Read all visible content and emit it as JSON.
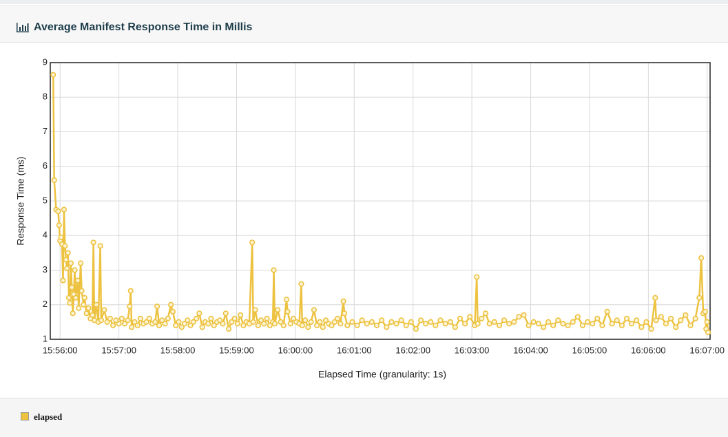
{
  "chart_data": {
    "type": "line",
    "title": "Average Manifest Response Time in Millis",
    "x_label": "Elapsed Time (granularity: 1s)",
    "y_label": "Response Time (ms)",
    "grid": true,
    "legend": "bottom-left",
    "xlim": [
      "15:55:50",
      "16:07:03"
    ],
    "xticks": [
      "15:56:00",
      "15:57:00",
      "15:58:00",
      "15:59:00",
      "16:00:00",
      "16:01:00",
      "16:02:00",
      "16:03:00",
      "16:04:00",
      "16:05:00",
      "16:06:00",
      "16:07:00"
    ],
    "ylim": [
      1,
      9
    ],
    "yticks": [
      1,
      2,
      3,
      4,
      5,
      6,
      7,
      8,
      9
    ],
    "x": [
      "15:55:53",
      "15:55:54",
      "15:55:56",
      "15:55:58",
      "15:55:59",
      "15:56:00",
      "15:56:01",
      "15:56:02",
      "15:56:03",
      "15:56:04",
      "15:56:05",
      "15:56:06",
      "15:56:07",
      "15:56:08",
      "15:56:09",
      "15:56:10",
      "15:56:11",
      "15:56:12",
      "15:56:13",
      "15:56:14",
      "15:56:15",
      "15:56:16",
      "15:56:18",
      "15:56:19",
      "15:56:21",
      "15:56:22",
      "15:56:24",
      "15:56:25",
      "15:56:27",
      "15:56:29",
      "15:56:31",
      "15:56:33",
      "15:56:34",
      "15:56:35",
      "15:56:37",
      "15:56:39",
      "15:56:41",
      "15:56:42",
      "15:56:45",
      "15:56:48",
      "15:56:51",
      "15:56:54",
      "15:56:57",
      "15:57:00",
      "15:57:03",
      "15:57:06",
      "15:57:09",
      "15:57:11",
      "15:57:12",
      "15:57:13",
      "15:57:16",
      "15:57:19",
      "15:57:22",
      "15:57:25",
      "15:57:28",
      "15:57:31",
      "15:57:34",
      "15:57:37",
      "15:57:39",
      "15:57:41",
      "15:57:44",
      "15:57:47",
      "15:57:50",
      "15:57:53",
      "15:57:55",
      "15:57:58",
      "15:58:01",
      "15:58:04",
      "15:58:07",
      "15:58:10",
      "15:58:13",
      "15:58:16",
      "15:58:19",
      "15:58:22",
      "15:58:25",
      "15:58:28",
      "15:58:31",
      "15:58:34",
      "15:58:37",
      "15:58:40",
      "15:58:43",
      "15:58:46",
      "15:58:49",
      "15:58:52",
      "15:58:55",
      "15:58:58",
      "15:59:01",
      "15:59:04",
      "15:59:07",
      "15:59:10",
      "15:59:13",
      "15:59:16",
      "15:59:17",
      "15:59:19",
      "15:59:22",
      "15:59:25",
      "15:59:28",
      "15:59:31",
      "15:59:34",
      "15:59:37",
      "15:59:38",
      "15:59:39",
      "15:59:42",
      "15:59:45",
      "15:59:48",
      "15:59:51",
      "15:59:52",
      "15:59:55",
      "15:59:58",
      "16:00:01",
      "16:00:04",
      "16:00:06",
      "16:00:07",
      "16:00:10",
      "16:00:13",
      "16:00:16",
      "16:00:19",
      "16:00:22",
      "16:00:25",
      "16:00:28",
      "16:00:31",
      "16:00:34",
      "16:00:37",
      "16:00:40",
      "16:00:43",
      "16:00:46",
      "16:00:49",
      "16:00:50",
      "16:00:53",
      "16:00:58",
      "16:01:03",
      "16:01:08",
      "16:01:13",
      "16:01:18",
      "16:01:23",
      "16:01:28",
      "16:01:33",
      "16:01:38",
      "16:01:43",
      "16:01:48",
      "16:01:53",
      "16:01:58",
      "16:02:03",
      "16:02:08",
      "16:02:13",
      "16:02:18",
      "16:02:23",
      "16:02:28",
      "16:02:33",
      "16:02:38",
      "16:02:43",
      "16:02:48",
      "16:02:53",
      "16:02:58",
      "16:03:03",
      "16:03:05",
      "16:03:06",
      "16:03:10",
      "16:03:14",
      "16:03:18",
      "16:03:23",
      "16:03:28",
      "16:03:33",
      "16:03:38",
      "16:03:43",
      "16:03:48",
      "16:03:53",
      "16:03:58",
      "16:04:03",
      "16:04:08",
      "16:04:13",
      "16:04:18",
      "16:04:23",
      "16:04:28",
      "16:04:33",
      "16:04:38",
      "16:04:43",
      "16:04:48",
      "16:04:53",
      "16:04:58",
      "16:05:03",
      "16:05:08",
      "16:05:13",
      "16:05:18",
      "16:05:23",
      "16:05:28",
      "16:05:33",
      "16:05:38",
      "16:05:43",
      "16:05:48",
      "16:05:53",
      "16:05:58",
      "16:06:03",
      "16:06:07",
      "16:06:08",
      "16:06:13",
      "16:06:18",
      "16:06:23",
      "16:06:28",
      "16:06:33",
      "16:06:38",
      "16:06:43",
      "16:06:48",
      "16:06:52",
      "16:06:54",
      "16:06:56",
      "16:06:58",
      "16:06:59",
      "16:07:00",
      "16:07:01"
    ],
    "series": [
      {
        "name": "elapsed",
        "color": "#edc240",
        "values": [
          8.65,
          5.6,
          4.75,
          4.7,
          4.3,
          3.85,
          3.95,
          3.75,
          2.7,
          4.75,
          3.7,
          3.3,
          3.05,
          3.5,
          2.2,
          2.05,
          3.2,
          2.5,
          1.75,
          2.3,
          3.0,
          2.2,
          2.7,
          1.9,
          3.2,
          2.4,
          2.0,
          2.2,
          1.75,
          1.9,
          1.6,
          1.7,
          3.8,
          1.55,
          2.0,
          1.5,
          3.7,
          1.55,
          1.85,
          1.5,
          1.6,
          1.4,
          1.55,
          1.45,
          1.6,
          1.45,
          1.55,
          1.95,
          2.4,
          1.35,
          1.5,
          1.4,
          1.6,
          1.45,
          1.5,
          1.6,
          1.45,
          1.5,
          1.95,
          1.4,
          1.55,
          1.45,
          1.6,
          2.0,
          1.8,
          1.4,
          1.5,
          1.35,
          1.45,
          1.55,
          1.4,
          1.5,
          1.6,
          1.75,
          1.35,
          1.5,
          1.45,
          1.6,
          1.4,
          1.5,
          1.55,
          1.45,
          1.75,
          1.3,
          1.5,
          1.6,
          1.45,
          1.7,
          1.4,
          1.5,
          1.45,
          3.8,
          1.5,
          1.85,
          1.4,
          1.55,
          1.45,
          1.6,
          1.4,
          1.5,
          3.0,
          1.45,
          1.85,
          1.5,
          1.4,
          2.15,
          1.8,
          1.45,
          1.6,
          1.5,
          1.45,
          2.6,
          1.4,
          1.55,
          1.35,
          1.5,
          1.85,
          1.4,
          1.5,
          1.35,
          1.55,
          1.45,
          1.4,
          1.5,
          1.6,
          1.45,
          2.1,
          1.75,
          1.4,
          1.5,
          1.4,
          1.55,
          1.45,
          1.5,
          1.4,
          1.55,
          1.35,
          1.5,
          1.45,
          1.55,
          1.4,
          1.5,
          1.3,
          1.55,
          1.45,
          1.5,
          1.4,
          1.55,
          1.45,
          1.5,
          1.35,
          1.6,
          1.45,
          1.65,
          1.4,
          2.8,
          1.45,
          1.6,
          1.75,
          1.45,
          1.5,
          1.4,
          1.55,
          1.45,
          1.5,
          1.65,
          1.7,
          1.4,
          1.5,
          1.45,
          1.35,
          1.5,
          1.4,
          1.55,
          1.45,
          1.4,
          1.5,
          1.65,
          1.4,
          1.5,
          1.45,
          1.6,
          1.4,
          1.8,
          1.45,
          1.55,
          1.4,
          1.6,
          1.45,
          1.55,
          1.35,
          1.5,
          1.3,
          2.2,
          1.55,
          1.65,
          1.45,
          1.6,
          1.35,
          1.55,
          1.7,
          1.4,
          1.6,
          2.2,
          3.35,
          1.75,
          1.8,
          1.3,
          1.5,
          1.2
        ]
      }
    ]
  }
}
